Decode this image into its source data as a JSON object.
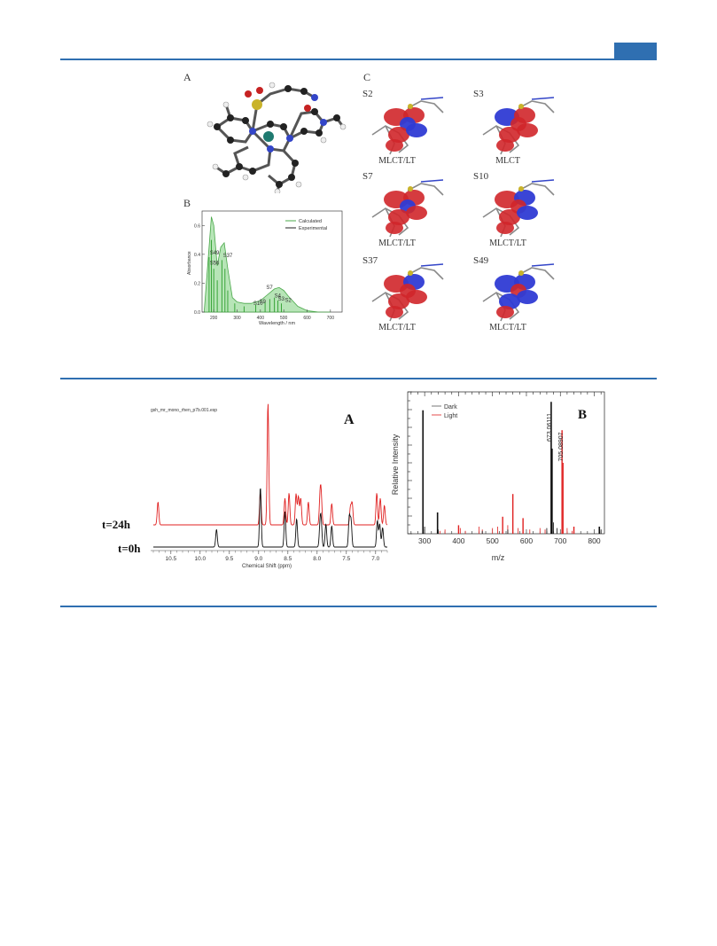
{
  "figure1": {
    "panel_a_label": "A",
    "panel_b_label": "B",
    "panel_c_label": "C",
    "orbitals": [
      {
        "state": "S2",
        "type": "MLCT/LT"
      },
      {
        "state": "S3",
        "type": "MLCT"
      },
      {
        "state": "S7",
        "type": "MLCT/LT"
      },
      {
        "state": "S10",
        "type": "MLCT/LT"
      },
      {
        "state": "S37",
        "type": "MLCT/LT"
      },
      {
        "state": "S49",
        "type": "MLCT/LT"
      }
    ],
    "absorbance_chart": {
      "legend_calc": "Calculated",
      "legend_exp": "Experimental",
      "ylabel": "Absorbance",
      "xlabel": "Wavelength / nm",
      "yticks": [
        "0.0",
        "0.2",
        "0.4",
        "0.6"
      ],
      "xticks": [
        "200",
        "300",
        "400",
        "500",
        "600",
        "700"
      ],
      "peak_labels": [
        "S49",
        "S56",
        "S37",
        "S10",
        "S9",
        "S7",
        "S4",
        "S3",
        "S2"
      ]
    }
  },
  "figure2": {
    "panel_a_label": "A",
    "panel_b_label": "B",
    "nmr": {
      "file_label": "gsh_mr_mono_rhen_p7b.001.esp",
      "trace_24h": "t=24h",
      "trace_0h": "t=0h",
      "xlabel": "Chemical Shift (ppm)",
      "xticks": [
        "10.5",
        "10.0",
        "9.5",
        "9.0",
        "8.5",
        "8.0",
        "7.5",
        "7.0"
      ]
    },
    "ms": {
      "legend_dark": "Dark",
      "legend_light": "Light",
      "ylabel": "Relative Intensity",
      "xlabel": "m/z",
      "xticks": [
        "300",
        "400",
        "500",
        "600",
        "700",
        "800"
      ],
      "peak_label_dark": "673.06111",
      "peak_label_light": "705.08907"
    }
  },
  "colors": {
    "rule": "#2f6fb1",
    "light_trace": "#e02020",
    "dark_trace": "#111111",
    "calc_fill": "#9fdc9f"
  },
  "chart_data": [
    {
      "type": "line",
      "title": "",
      "xlabel": "Wavelength / nm",
      "ylabel": "Absorbance",
      "xlim": [
        150,
        750
      ],
      "ylim": [
        0,
        0.7
      ],
      "series": [
        {
          "name": "Calculated",
          "x": [
            160,
            180,
            190,
            200,
            215,
            230,
            245,
            260,
            280,
            300,
            330,
            360,
            400,
            430,
            460,
            480,
            500,
            520,
            560,
            600,
            650,
            700
          ],
          "y": [
            0.02,
            0.45,
            0.66,
            0.6,
            0.32,
            0.45,
            0.48,
            0.3,
            0.1,
            0.07,
            0.06,
            0.06,
            0.08,
            0.12,
            0.16,
            0.17,
            0.15,
            0.11,
            0.04,
            0.01,
            0.0,
            0.0
          ]
        }
      ]
    },
    {
      "type": "line",
      "title": "",
      "xlabel": "Chemical Shift (ppm)",
      "xlim": [
        10.8,
        6.8
      ],
      "series": [
        {
          "name": "t=24h",
          "peaks_ppm": [
            10.72,
            8.84,
            8.97,
            8.55,
            8.48,
            8.36,
            8.32,
            8.28,
            8.15,
            7.95,
            7.93,
            7.75,
            7.43,
            7.4,
            6.98,
            6.92,
            6.85
          ]
        },
        {
          "name": "t=0h",
          "peaks_ppm": [
            9.72,
            8.97,
            8.55,
            8.35,
            7.95,
            7.93,
            7.85,
            7.75,
            7.45,
            7.42,
            6.97,
            6.93,
            6.88
          ]
        }
      ]
    },
    {
      "type": "line",
      "title": "",
      "xlabel": "m/z",
      "ylabel": "Relative Intensity",
      "xlim": [
        250,
        830
      ],
      "series": [
        {
          "name": "Dark",
          "peaks_mz": [
            295,
            338,
            673,
            815
          ],
          "rel": [
            0.87,
            0.15,
            0.93,
            0.05
          ]
        },
        {
          "name": "Light",
          "peaks_mz": [
            400,
            530,
            560,
            590,
            705,
            740
          ],
          "rel": [
            0.06,
            0.12,
            0.28,
            0.11,
            0.73,
            0.05
          ]
        }
      ]
    }
  ]
}
